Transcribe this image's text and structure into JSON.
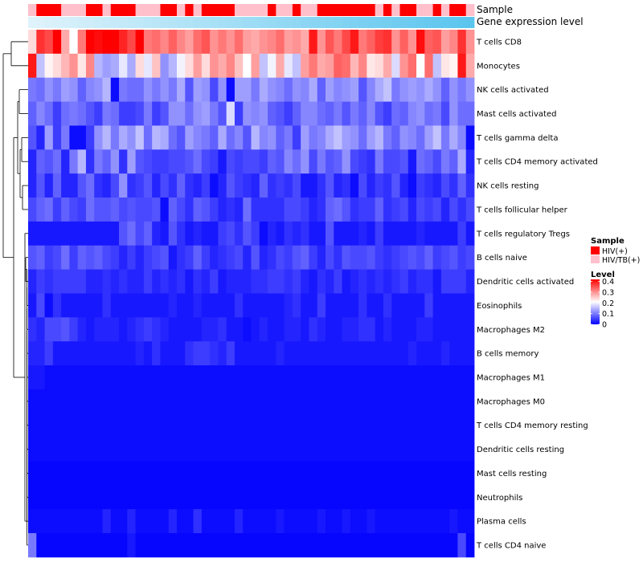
{
  "chart_data": {
    "type": "heatmap",
    "annotations": [
      "Sample",
      "Gene expression level"
    ],
    "rows": [
      "T cells CD8",
      "Monocytes",
      "NK cells activated",
      "Mast cells activated",
      "T cells gamma delta",
      "T cells CD4 memory activated",
      "NK cells resting",
      "T cells follicular helper",
      "T cells regulatory  Tregs",
      "B cells naive",
      "Dendritic cells activated",
      "Eosinophils",
      "Macrophages M2",
      "B cells memory",
      "Macrophages M1",
      "Macrophages M0",
      "T cells CD4 memory resting",
      "Dendritic cells resting",
      "Mast cells resting",
      "Neutrophils",
      "Plasma cells",
      "T cells CD4 naive"
    ],
    "sample_groups": [
      "HIV/TB(+)",
      "HIV(+)",
      "HIV(+)",
      "HIV(+)",
      "HIV/TB(+)",
      "HIV/TB(+)",
      "HIV/TB(+)",
      "HIV(+)",
      "HIV(+)",
      "HIV/TB(+)",
      "HIV(+)",
      "HIV(+)",
      "HIV(+)",
      "HIV/TB(+)",
      "HIV/TB(+)",
      "HIV/TB(+)",
      "HIV(+)",
      "HIV(+)",
      "HIV/TB(+)",
      "HIV(+)",
      "HIV/TB(+)",
      "HIV(+)",
      "HIV(+)",
      "HIV(+)",
      "HIV(+)",
      "HIV/TB(+)",
      "HIV/TB(+)",
      "HIV/TB(+)",
      "HIV/TB(+)",
      "HIV(+)",
      "HIV/TB(+)",
      "HIV/TB(+)",
      "HIV(+)",
      "HIV/TB(+)",
      "HIV/TB(+)",
      "HIV(+)",
      "HIV(+)",
      "HIV(+)",
      "HIV(+)",
      "HIV(+)",
      "HIV(+)",
      "HIV(+)",
      "HIV/TB(+)",
      "HIV(+)",
      "HIV/TB(+)",
      "HIV(+)",
      "HIV(+)",
      "HIV/TB(+)",
      "HIV/TB(+)",
      "HIV(+)",
      "HIV/TB(+)",
      "HIV(+)",
      "HIV(+)",
      "HIV/TB(+)"
    ],
    "values": [
      [
        0.24,
        0.38,
        0.36,
        0.42,
        0.28,
        0.21,
        0.32,
        0.45,
        0.41,
        0.43,
        0.44,
        0.39,
        0.36,
        0.45,
        0.32,
        0.33,
        0.31,
        0.34,
        0.31,
        0.29,
        0.33,
        0.35,
        0.3,
        0.32,
        0.3,
        0.33,
        0.29,
        0.28,
        0.3,
        0.31,
        0.33,
        0.29,
        0.3,
        0.28,
        0.4,
        0.3,
        0.35,
        0.32,
        0.36,
        0.4,
        0.32,
        0.34,
        0.37,
        0.38,
        0.3,
        0.34,
        0.3,
        0.41,
        0.34,
        0.35,
        0.29,
        0.31,
        0.38,
        0.3
      ],
      [
        0.4,
        0.16,
        0.22,
        0.24,
        0.27,
        0.3,
        0.23,
        0.31,
        0.15,
        0.13,
        0.14,
        0.19,
        0.14,
        0.24,
        0.19,
        0.26,
        0.12,
        0.15,
        0.2,
        0.24,
        0.29,
        0.24,
        0.3,
        0.28,
        0.31,
        0.26,
        0.21,
        0.29,
        0.16,
        0.2,
        0.28,
        0.19,
        0.16,
        0.29,
        0.32,
        0.28,
        0.29,
        0.34,
        0.33,
        0.27,
        0.31,
        0.23,
        0.24,
        0.28,
        0.18,
        0.3,
        0.33,
        0.21,
        0.33,
        0.16,
        0.23,
        0.22,
        0.4,
        0.28
      ],
      [
        0.1,
        0.09,
        0.12,
        0.1,
        0.13,
        0.12,
        0.08,
        0.11,
        0.12,
        0.15,
        0.01,
        0.1,
        0.09,
        0.09,
        0.12,
        0.1,
        0.12,
        0.1,
        0.14,
        0.07,
        0.13,
        0.12,
        0.06,
        0.12,
        0.01,
        0.13,
        0.13,
        0.1,
        0.14,
        0.12,
        0.11,
        0.09,
        0.12,
        0.11,
        0.14,
        0.08,
        0.13,
        0.11,
        0.12,
        0.13,
        0.07,
        0.11,
        0.14,
        0.16,
        0.1,
        0.12,
        0.13,
        0.12,
        0.14,
        0.12,
        0.08,
        0.12,
        0.1,
        0.12
      ],
      [
        0.08,
        0.11,
        0.09,
        0.05,
        0.09,
        0.1,
        0.09,
        0.07,
        0.05,
        0.1,
        0.09,
        0.05,
        0.05,
        0.06,
        0.1,
        0.05,
        0.07,
        0.12,
        0.12,
        0.09,
        0.12,
        0.13,
        0.1,
        0.07,
        0.18,
        0.05,
        0.12,
        0.11,
        0.12,
        0.08,
        0.07,
        0.05,
        0.08,
        0.11,
        0.11,
        0.09,
        0.08,
        0.1,
        0.07,
        0.1,
        0.08,
        0.11,
        0.07,
        0.05,
        0.09,
        0.08,
        0.11,
        0.12,
        0.09,
        0.1,
        0.06,
        0.12,
        0.09,
        0.09
      ],
      [
        0.07,
        0.03,
        0.13,
        0.05,
        0.1,
        0.01,
        0.01,
        0.05,
        0.12,
        0.15,
        0.1,
        0.14,
        0.12,
        0.16,
        0.09,
        0.15,
        0.14,
        0.09,
        0.07,
        0.13,
        0.11,
        0.1,
        0.08,
        0.14,
        0.09,
        0.11,
        0.07,
        0.15,
        0.11,
        0.12,
        0.08,
        0.1,
        0.05,
        0.13,
        0.1,
        0.11,
        0.14,
        0.16,
        0.13,
        0.12,
        0.09,
        0.13,
        0.15,
        0.1,
        0.08,
        0.12,
        0.11,
        0.09,
        0.13,
        0.16,
        0.1,
        0.14,
        0.11,
        0.01
      ],
      [
        0.03,
        0.08,
        0.07,
        0.09,
        0.03,
        0.1,
        0.15,
        0.04,
        0.1,
        0.08,
        0.12,
        0.04,
        0.13,
        0.07,
        0.06,
        0.05,
        0.05,
        0.06,
        0.06,
        0.07,
        0.09,
        0.06,
        0.05,
        0.02,
        0.06,
        0.05,
        0.06,
        0.06,
        0.05,
        0.08,
        0.07,
        0.11,
        0.09,
        0.12,
        0.06,
        0.1,
        0.07,
        0.08,
        0.12,
        0.06,
        0.05,
        0.04,
        0.1,
        0.06,
        0.06,
        0.07,
        0.02,
        0.09,
        0.08,
        0.06,
        0.1,
        0.08,
        0.14,
        0.03
      ],
      [
        0.03,
        0.07,
        0.03,
        0.08,
        0.03,
        0.03,
        0.07,
        0.09,
        0.04,
        0.03,
        0.06,
        0.12,
        0.04,
        0.05,
        0.07,
        0.03,
        0.06,
        0.04,
        0.08,
        0.04,
        0.03,
        0.05,
        0.01,
        0.03,
        0.07,
        0.05,
        0.04,
        0.03,
        0.08,
        0.04,
        0.05,
        0.04,
        0.06,
        0.02,
        0.02,
        0.04,
        0.07,
        0.03,
        0.04,
        0.01,
        0.06,
        0.03,
        0.05,
        0.04,
        0.07,
        0.03,
        0.01,
        0.05,
        0.04,
        0.03,
        0.06,
        0.04,
        0.08,
        0.04
      ],
      [
        0.06,
        0.08,
        0.09,
        0.05,
        0.08,
        0.06,
        0.05,
        0.09,
        0.07,
        0.07,
        0.08,
        0.06,
        0.07,
        0.06,
        0.06,
        0.07,
        0.01,
        0.08,
        0.06,
        0.04,
        0.08,
        0.07,
        0.05,
        0.03,
        0.04,
        0.03,
        0.09,
        0.04,
        0.04,
        0.04,
        0.04,
        0.06,
        0.06,
        0.05,
        0.03,
        0.04,
        0.08,
        0.09,
        0.07,
        0.04,
        0.05,
        0.05,
        0.08,
        0.04,
        0.05,
        0.06,
        0.03,
        0.06,
        0.05,
        0.06,
        0.03,
        0.06,
        0.04,
        0.06
      ],
      [
        0.02,
        0.02,
        0.02,
        0.02,
        0.02,
        0.02,
        0.02,
        0.02,
        0.02,
        0.02,
        0.02,
        0.07,
        0.09,
        0.06,
        0.08,
        0.03,
        0.02,
        0.07,
        0.04,
        0.02,
        0.03,
        0.02,
        0.02,
        0.05,
        0.06,
        0.04,
        0.07,
        0.05,
        0.01,
        0.03,
        0.02,
        0.04,
        0.03,
        0.04,
        0.02,
        0.02,
        0.07,
        0.02,
        0.02,
        0.02,
        0.03,
        0.02,
        0.05,
        0.02,
        0.02,
        0.02,
        0.02,
        0.03,
        0.02,
        0.02,
        0.02,
        0.02,
        0.05,
        0.02
      ],
      [
        0.07,
        0.08,
        0.05,
        0.06,
        0.09,
        0.05,
        0.08,
        0.07,
        0.08,
        0.06,
        0.05,
        0.03,
        0.05,
        0.03,
        0.05,
        0.06,
        0.07,
        0.02,
        0.04,
        0.05,
        0.08,
        0.05,
        0.03,
        0.04,
        0.05,
        0.06,
        0.03,
        0.07,
        0.03,
        0.04,
        0.06,
        0.05,
        0.07,
        0.08,
        0.05,
        0.03,
        0.06,
        0.04,
        0.07,
        0.06,
        0.06,
        0.07,
        0.05,
        0.04,
        0.05,
        0.06,
        0.07,
        0.06,
        0.08,
        0.05,
        0.06,
        0.07,
        0.05,
        0.06
      ],
      [
        0.03,
        0.05,
        0.04,
        0.05,
        0.05,
        0.05,
        0.05,
        0.03,
        0.03,
        0.04,
        0.03,
        0.04,
        0.03,
        0.03,
        0.05,
        0.03,
        0.04,
        0.03,
        0.04,
        0.02,
        0.04,
        0.03,
        0.05,
        0.02,
        0.03,
        0.03,
        0.03,
        0.04,
        0.04,
        0.05,
        0.05,
        0.04,
        0.05,
        0.03,
        0.02,
        0.04,
        0.03,
        0.05,
        0.02,
        0.03,
        0.04,
        0.03,
        0.04,
        0.03,
        0.04,
        0.05,
        0.03,
        0.04,
        0.04,
        0.02,
        0.05,
        0.05,
        0.05,
        0.03
      ],
      [
        0.02,
        0.06,
        0.01,
        0.04,
        0.02,
        0.02,
        0.02,
        0.02,
        0.02,
        0.04,
        0.02,
        0.02,
        0.02,
        0.02,
        0.02,
        0.02,
        0.02,
        0.03,
        0.02,
        0.02,
        0.03,
        0.02,
        0.02,
        0.02,
        0.02,
        0.04,
        0.02,
        0.02,
        0.02,
        0.02,
        0.02,
        0.03,
        0.04,
        0.02,
        0.02,
        0.05,
        0.02,
        0.02,
        0.02,
        0.02,
        0.04,
        0.02,
        0.02,
        0.04,
        0.02,
        0.02,
        0.02,
        0.02,
        0.05,
        0.02,
        0.02,
        0.02,
        0.02,
        0.02
      ],
      [
        0.04,
        0.03,
        0.06,
        0.06,
        0.07,
        0.05,
        0.03,
        0.02,
        0.03,
        0.03,
        0.03,
        0.02,
        0.03,
        0.04,
        0.05,
        0.04,
        0.03,
        0.02,
        0.02,
        0.02,
        0.02,
        0.03,
        0.03,
        0.04,
        0.02,
        0.02,
        0.01,
        0.02,
        0.03,
        0.02,
        0.02,
        0.03,
        0.03,
        0.02,
        0.04,
        0.03,
        0.02,
        0.02,
        0.03,
        0.03,
        0.04,
        0.04,
        0.02,
        0.03,
        0.02,
        0.02,
        0.02,
        0.03,
        0.03,
        0.02,
        0.02,
        0.02,
        0.02,
        0.02
      ],
      [
        0.03,
        0.03,
        0.05,
        0.02,
        0.02,
        0.02,
        0.02,
        0.02,
        0.02,
        0.02,
        0.02,
        0.02,
        0.02,
        0.03,
        0.02,
        0.04,
        0.02,
        0.02,
        0.02,
        0.04,
        0.05,
        0.05,
        0.04,
        0.03,
        0.05,
        0.02,
        0.02,
        0.02,
        0.02,
        0.02,
        0.03,
        0.02,
        0.02,
        0.02,
        0.02,
        0.02,
        0.02,
        0.02,
        0.02,
        0.02,
        0.02,
        0.02,
        0.02,
        0.02,
        0.02,
        0.02,
        0.03,
        0.02,
        0.02,
        0.02,
        0.03,
        0.02,
        0.02,
        0.02
      ],
      [
        0.02,
        0.02,
        0.01,
        0.01,
        0.01,
        0.01,
        0.01,
        0.01,
        0.01,
        0.01,
        0.01,
        0.01,
        0.01,
        0.01,
        0.01,
        0.01,
        0.01,
        0.01,
        0.01,
        0.01,
        0.01,
        0.01,
        0.01,
        0.01,
        0.01,
        0.01,
        0.01,
        0.01,
        0.01,
        0.01,
        0.01,
        0.01,
        0.01,
        0.01,
        0.01,
        0.01,
        0.01,
        0.01,
        0.01,
        0.01,
        0.01,
        0.01,
        0.01,
        0.01,
        0.01,
        0.01,
        0.01,
        0.01,
        0.01,
        0.01,
        0.01,
        0.01,
        0.01,
        0.01
      ],
      [
        0.01,
        0.01,
        0.01,
        0.01,
        0.01,
        0.01,
        0.01,
        0.01,
        0.01,
        0.01,
        0.01,
        0.01,
        0.01,
        0.01,
        0.01,
        0.01,
        0.01,
        0.01,
        0.01,
        0.01,
        0.01,
        0.01,
        0.01,
        0.01,
        0.01,
        0.01,
        0.01,
        0.01,
        0.01,
        0.01,
        0.01,
        0.01,
        0.01,
        0.01,
        0.01,
        0.01,
        0.01,
        0.01,
        0.01,
        0.01,
        0.01,
        0.01,
        0.01,
        0.01,
        0.01,
        0.01,
        0.01,
        0.01,
        0.01,
        0.01,
        0.01,
        0.01,
        0.01,
        0.01
      ],
      [
        0.01,
        0.01,
        0.01,
        0.01,
        0.01,
        0.01,
        0.01,
        0.01,
        0.01,
        0.01,
        0.01,
        0.01,
        0.01,
        0.01,
        0.01,
        0.01,
        0.01,
        0.01,
        0.01,
        0.01,
        0.01,
        0.01,
        0.01,
        0.01,
        0.01,
        0.01,
        0.01,
        0.01,
        0.01,
        0.01,
        0.01,
        0.01,
        0.01,
        0.01,
        0.01,
        0.01,
        0.01,
        0.01,
        0.01,
        0.01,
        0.01,
        0.01,
        0.01,
        0.01,
        0.01,
        0.01,
        0.01,
        0.01,
        0.01,
        0.01,
        0.01,
        0.01,
        0.01,
        0.01
      ],
      [
        0.01,
        0.01,
        0.01,
        0.01,
        0.01,
        0.01,
        0.01,
        0.01,
        0.01,
        0.01,
        0.01,
        0.01,
        0.01,
        0.01,
        0.01,
        0.01,
        0.01,
        0.01,
        0.01,
        0.01,
        0.01,
        0.01,
        0.01,
        0.01,
        0.01,
        0.01,
        0.01,
        0.01,
        0.01,
        0.01,
        0.01,
        0.01,
        0.01,
        0.01,
        0.01,
        0.01,
        0.01,
        0.01,
        0.01,
        0.01,
        0.01,
        0.01,
        0.01,
        0.01,
        0.01,
        0.01,
        0.01,
        0.01,
        0.01,
        0.01,
        0.01,
        0.01,
        0.01,
        0.01
      ],
      [
        0.005,
        0.005,
        0.005,
        0.005,
        0.005,
        0.005,
        0.005,
        0.005,
        0.005,
        0.005,
        0.005,
        0.005,
        0.005,
        0.005,
        0.005,
        0.005,
        0.005,
        0.005,
        0.005,
        0.005,
        0.005,
        0.005,
        0.005,
        0.005,
        0.005,
        0.005,
        0.005,
        0.005,
        0.005,
        0.005,
        0.005,
        0.005,
        0.005,
        0.005,
        0.005,
        0.005,
        0.005,
        0.005,
        0.005,
        0.005,
        0.005,
        0.005,
        0.005,
        0.005,
        0.005,
        0.005,
        0.005,
        0.005,
        0.005,
        0.005,
        0.005,
        0.005,
        0.005,
        0.005
      ],
      [
        0.005,
        0.005,
        0.005,
        0.005,
        0.005,
        0.005,
        0.005,
        0.005,
        0.005,
        0.005,
        0.005,
        0.005,
        0.005,
        0.005,
        0.005,
        0.005,
        0.005,
        0.005,
        0.005,
        0.005,
        0.005,
        0.005,
        0.005,
        0.005,
        0.005,
        0.005,
        0.005,
        0.005,
        0.005,
        0.005,
        0.005,
        0.005,
        0.005,
        0.005,
        0.005,
        0.005,
        0.005,
        0.005,
        0.005,
        0.005,
        0.005,
        0.005,
        0.005,
        0.005,
        0.005,
        0.005,
        0.005,
        0.005,
        0.005,
        0.005,
        0.005,
        0.005,
        0.005,
        0.005
      ],
      [
        0.01,
        0.01,
        0.01,
        0.01,
        0.01,
        0.01,
        0.01,
        0.01,
        0.01,
        0.03,
        0.01,
        0.01,
        0.03,
        0.01,
        0.01,
        0.01,
        0.01,
        0.03,
        0.01,
        0.01,
        0.04,
        0.01,
        0.01,
        0.01,
        0.01,
        0.03,
        0.01,
        0.01,
        0.01,
        0.01,
        0.02,
        0.01,
        0.01,
        0.01,
        0.01,
        0.02,
        0.01,
        0.01,
        0.02,
        0.01,
        0.01,
        0.02,
        0.01,
        0.01,
        0.01,
        0.01,
        0.01,
        0.01,
        0.01,
        0.01,
        0.01,
        0.02,
        0.01,
        0.01
      ],
      [
        0.1,
        0.005,
        0.005,
        0.005,
        0.005,
        0.005,
        0.005,
        0.005,
        0.005,
        0.005,
        0.005,
        0.005,
        0.02,
        0.005,
        0.005,
        0.005,
        0.005,
        0.005,
        0.005,
        0.005,
        0.005,
        0.005,
        0.005,
        0.005,
        0.005,
        0.005,
        0.005,
        0.005,
        0.005,
        0.005,
        0.005,
        0.005,
        0.005,
        0.005,
        0.005,
        0.005,
        0.005,
        0.005,
        0.005,
        0.005,
        0.005,
        0.005,
        0.005,
        0.005,
        0.005,
        0.005,
        0.005,
        0.005,
        0.005,
        0.005,
        0.005,
        0.005,
        0.06,
        0.005
      ]
    ],
    "legends": {
      "sample": {
        "title": "Sample",
        "items": [
          {
            "label": "HIV(+)",
            "color": "#ff0000"
          },
          {
            "label": "HIV/TB(+)",
            "color": "#ffc0cb"
          }
        ]
      },
      "level": {
        "title": "Level",
        "ticks": [
          "0.4",
          "0.3",
          "0.2",
          "0.1",
          "0"
        ],
        "tick_values": [
          0.4,
          0.3,
          0.2,
          0.1,
          0
        ],
        "range": [
          0,
          0.42
        ],
        "colors": [
          "#0000ff",
          "#ffffff",
          "#ff0000"
        ]
      }
    },
    "gene_gradient": [
      "#dff3fb",
      "#5bc5ee"
    ]
  }
}
